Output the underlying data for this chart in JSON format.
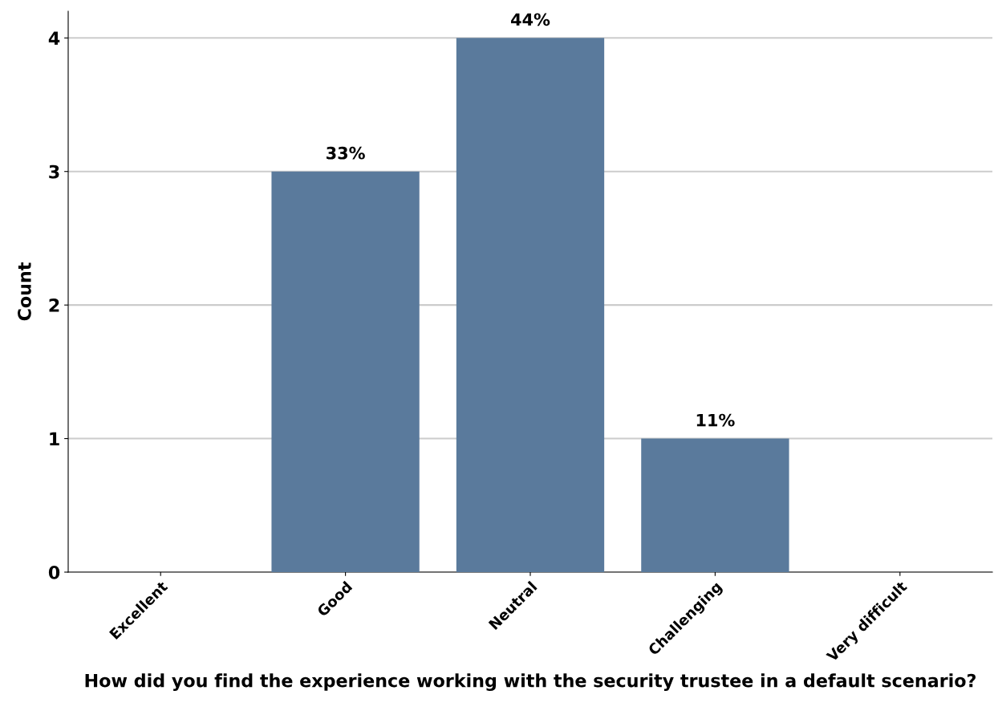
{
  "chart_data": {
    "type": "bar",
    "categories": [
      "Excellent",
      "Good",
      "Neutral",
      "Challenging",
      "Very difficult"
    ],
    "values": [
      0,
      3,
      4,
      1,
      0
    ],
    "annotations": [
      {
        "text": "33%",
        "x": "Good",
        "y": 3
      },
      {
        "text": "44%",
        "x": "Neutral",
        "y": 4
      },
      {
        "text": "11%",
        "x": "Challenging",
        "y": 1
      }
    ],
    "color": "#5a7a9c",
    "xlabel": "How did you find the experience working with the security trustee in a default scenario?",
    "ylabel": "Count",
    "ylim": [
      0,
      4.2
    ],
    "yticks": [
      0,
      1,
      2,
      3,
      4
    ],
    "grid": "y",
    "legend": false
  }
}
